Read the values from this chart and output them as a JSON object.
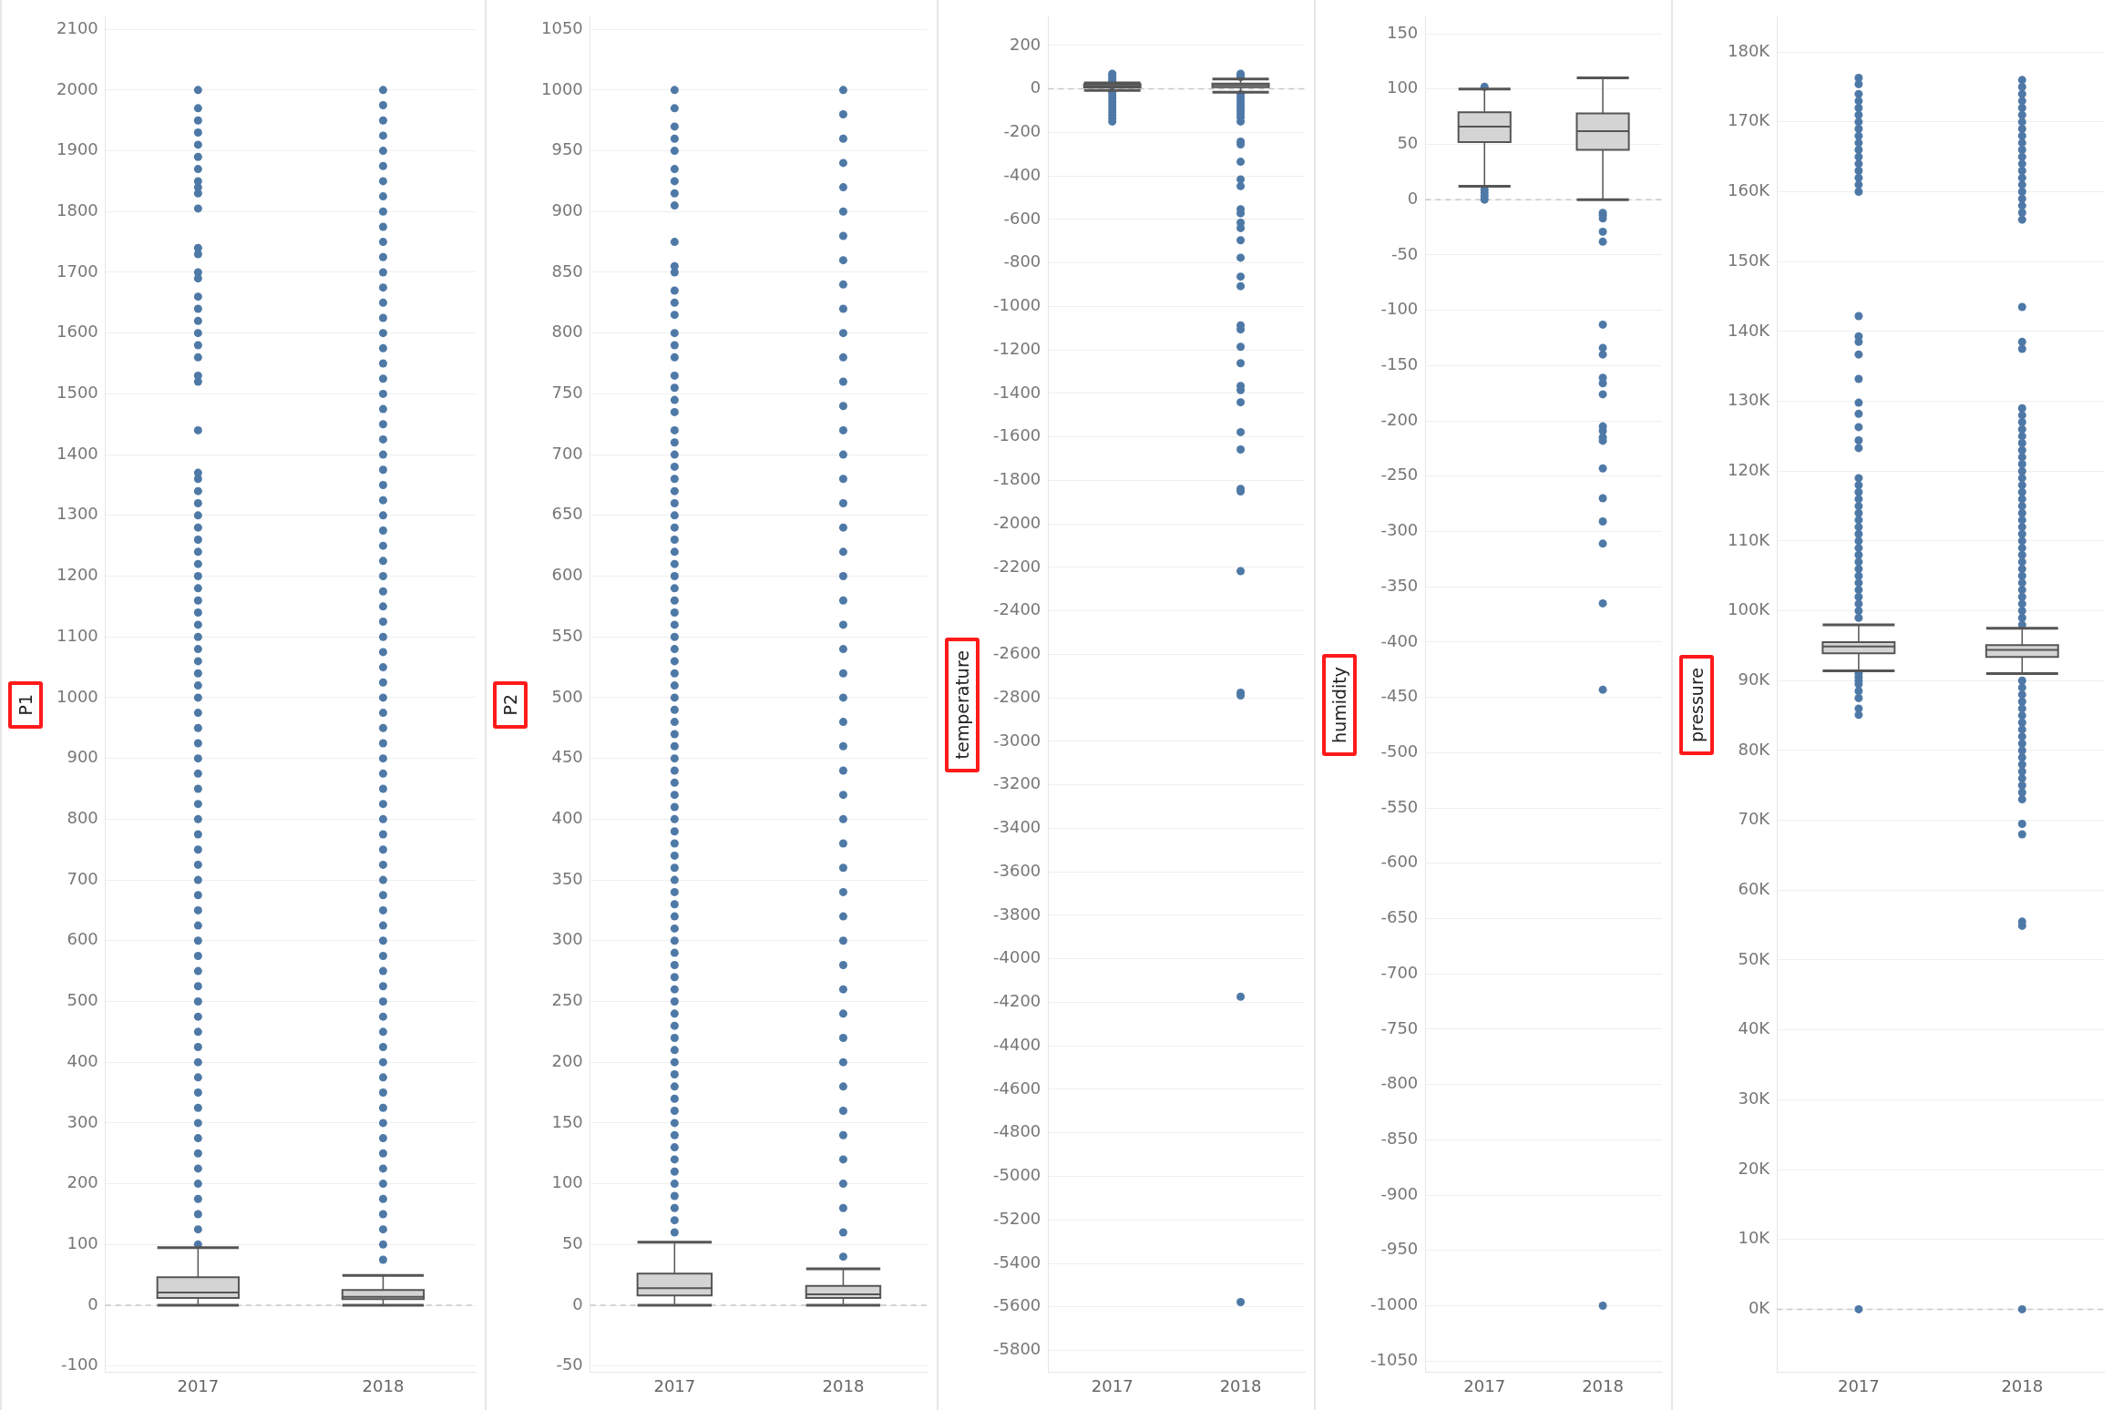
{
  "chart_data": [
    {
      "type": "box",
      "ylabel": "P1",
      "categories": [
        "2017",
        "2018"
      ],
      "grid": "y",
      "color": "#d4d4d4",
      "ylim": [
        -110,
        2120
      ],
      "yticks": [
        -100,
        0,
        100,
        200,
        300,
        400,
        500,
        600,
        700,
        800,
        900,
        1000,
        1100,
        1200,
        1300,
        1400,
        1500,
        1600,
        1700,
        1800,
        1900,
        2000,
        2100
      ],
      "ref_lines": [
        {
          "axis": "y",
          "value": 0,
          "color": "#c8c8c8",
          "line_style": "dashed"
        }
      ],
      "boxes": [
        {
          "low": 0,
          "q1": 12,
          "median": 21,
          "q3": 46,
          "high": 95,
          "outliers": [
            100,
            125,
            150,
            175,
            200,
            225,
            250,
            275,
            300,
            325,
            350,
            375,
            400,
            425,
            450,
            475,
            500,
            525,
            550,
            575,
            600,
            625,
            650,
            675,
            700,
            725,
            750,
            775,
            800,
            825,
            850,
            875,
            900,
            925,
            950,
            975,
            1000,
            1020,
            1040,
            1060,
            1080,
            1100,
            1120,
            1140,
            1160,
            1180,
            1200,
            1220,
            1240,
            1260,
            1280,
            1300,
            1320,
            1340,
            1360,
            1370,
            1440,
            1520,
            1530,
            1560,
            1580,
            1600,
            1620,
            1640,
            1660,
            1690,
            1700,
            1730,
            1740,
            1805,
            1830,
            1840,
            1850,
            1870,
            1890,
            1910,
            1930,
            1950,
            1970,
            2000
          ]
        },
        {
          "low": 0,
          "q1": 10,
          "median": 14,
          "q3": 25,
          "high": 49,
          "outliers": [
            75,
            100,
            125,
            150,
            175,
            200,
            225,
            250,
            275,
            300,
            325,
            350,
            375,
            400,
            425,
            450,
            475,
            500,
            525,
            550,
            575,
            600,
            625,
            650,
            675,
            700,
            725,
            750,
            775,
            800,
            825,
            850,
            875,
            900,
            925,
            950,
            975,
            1000,
            1025,
            1050,
            1075,
            1100,
            1125,
            1150,
            1175,
            1200,
            1225,
            1250,
            1275,
            1300,
            1325,
            1350,
            1375,
            1400,
            1425,
            1450,
            1475,
            1500,
            1525,
            1550,
            1575,
            1600,
            1625,
            1650,
            1675,
            1700,
            1725,
            1750,
            1775,
            1800,
            1825,
            1850,
            1875,
            1900,
            1925,
            1950,
            1975,
            2000
          ]
        }
      ]
    },
    {
      "type": "box",
      "ylabel": "P2",
      "categories": [
        "2017",
        "2018"
      ],
      "grid": "y",
      "color": "#d4d4d4",
      "ylim": [
        -55,
        1060
      ],
      "yticks": [
        -50,
        0,
        50,
        100,
        150,
        200,
        250,
        300,
        350,
        400,
        450,
        500,
        550,
        600,
        650,
        700,
        750,
        800,
        850,
        900,
        950,
        1000,
        1050
      ],
      "ref_lines": [
        {
          "axis": "y",
          "value": 0,
          "color": "#c8c8c8",
          "line_style": "dashed"
        }
      ],
      "boxes": [
        {
          "low": 0,
          "q1": 8,
          "median": 14,
          "q3": 26,
          "high": 52,
          "outliers": [
            60,
            70,
            80,
            90,
            100,
            110,
            120,
            130,
            140,
            150,
            160,
            170,
            180,
            190,
            200,
            210,
            220,
            230,
            240,
            250,
            260,
            270,
            280,
            290,
            300,
            310,
            320,
            330,
            340,
            350,
            360,
            370,
            380,
            390,
            400,
            410,
            420,
            430,
            440,
            450,
            460,
            470,
            480,
            490,
            500,
            510,
            520,
            530,
            540,
            550,
            560,
            570,
            580,
            590,
            600,
            610,
            620,
            630,
            640,
            650,
            660,
            670,
            680,
            690,
            700,
            710,
            720,
            735,
            745,
            755,
            765,
            780,
            790,
            800,
            815,
            825,
            835,
            850,
            855,
            875,
            905,
            915,
            925,
            935,
            950,
            960,
            970,
            985,
            1000
          ]
        },
        {
          "low": 0,
          "q1": 6,
          "median": 9,
          "q3": 16,
          "high": 30,
          "outliers": [
            40,
            60,
            80,
            100,
            120,
            140,
            160,
            180,
            200,
            220,
            240,
            260,
            280,
            300,
            320,
            340,
            360,
            380,
            400,
            420,
            440,
            460,
            480,
            500,
            520,
            540,
            560,
            580,
            600,
            620,
            640,
            660,
            680,
            700,
            720,
            740,
            760,
            780,
            800,
            820,
            840,
            860,
            880,
            900,
            920,
            940,
            960,
            980,
            1000
          ]
        }
      ]
    },
    {
      "type": "box",
      "ylabel": "temperature",
      "categories": [
        "2017",
        "2018"
      ],
      "grid": "y",
      "color": "#d4d4d4",
      "ylim": [
        -5900,
        330
      ],
      "yticks": [
        -5800,
        -5600,
        -5400,
        -5200,
        -5000,
        -4800,
        -4600,
        -4400,
        -4200,
        -4000,
        -3800,
        -3600,
        -3400,
        -3200,
        -3000,
        -2800,
        -2600,
        -2400,
        -2200,
        -2000,
        -1800,
        -1600,
        -1400,
        -1200,
        -1000,
        -800,
        -600,
        -400,
        -200,
        0,
        200
      ],
      "ref_lines": [
        {
          "axis": "y",
          "value": 0,
          "color": "#c8c8c8",
          "line_style": "dashed"
        }
      ],
      "boxes": [
        {
          "low": -7,
          "q1": 7,
          "median": 14,
          "q3": 21,
          "high": 28,
          "outliers": [
            35,
            45,
            55,
            65,
            70,
            -15,
            -30,
            -45,
            -60,
            -75,
            -90,
            -105,
            -120,
            -135,
            -150
          ]
        },
        {
          "low": -15,
          "q1": 8,
          "median": 17,
          "q3": 25,
          "high": 45,
          "outliers": [
            55,
            65,
            70,
            -25,
            -40,
            -55,
            -70,
            -85,
            -100,
            -115,
            -130,
            -150,
            -242,
            -255,
            -335,
            -416,
            -447,
            -553,
            -572,
            -615,
            -640,
            -696,
            -776,
            -863,
            -907,
            -1087,
            -1106,
            -1186,
            -1261,
            -1366,
            -1385,
            -1441,
            -1578,
            -1658,
            -1839,
            -1851,
            -2217,
            -2776,
            -2789,
            -4174,
            -5578
          ]
        }
      ]
    },
    {
      "type": "box",
      "ylabel": "humidity",
      "categories": [
        "2017",
        "2018"
      ],
      "grid": "y",
      "color": "#d4d4d4",
      "ylim": [
        -1060,
        165
      ],
      "yticks": [
        -1050,
        -1000,
        -950,
        -900,
        -850,
        -800,
        -750,
        -700,
        -650,
        -600,
        -550,
        -500,
        -450,
        -400,
        -350,
        -300,
        -250,
        -200,
        -150,
        -100,
        -50,
        0,
        50,
        100,
        150
      ],
      "ref_lines": [
        {
          "axis": "y",
          "value": 0,
          "color": "#c8c8c8",
          "line_style": "dashed"
        }
      ],
      "boxes": [
        {
          "low": 12,
          "q1": 52,
          "median": 66,
          "q3": 79,
          "high": 100,
          "outliers": [
            0,
            3,
            6,
            9,
            102
          ]
        },
        {
          "low": 0,
          "q1": 45,
          "median": 62,
          "q3": 78,
          "high": 110,
          "outliers": [
            -12,
            -14,
            -17,
            -29,
            -38,
            -113,
            -134,
            -140,
            -161,
            -166,
            -176,
            -205,
            -209,
            -215,
            -218,
            -243,
            -270,
            -291,
            -311,
            -365,
            -443,
            -1000
          ]
        }
      ]
    },
    {
      "type": "box",
      "ylabel": "pressure",
      "categories": [
        "2017",
        "2018"
      ],
      "grid": "y",
      "color": "#d4d4d4",
      "ylim": [
        -9000,
        185000
      ],
      "yticks": [
        {
          "value": 0,
          "label": "0K"
        },
        {
          "value": 10000,
          "label": "10K"
        },
        {
          "value": 20000,
          "label": "20K"
        },
        {
          "value": 30000,
          "label": "30K"
        },
        {
          "value": 40000,
          "label": "40K"
        },
        {
          "value": 50000,
          "label": "50K"
        },
        {
          "value": 60000,
          "label": "60K"
        },
        {
          "value": 70000,
          "label": "70K"
        },
        {
          "value": 80000,
          "label": "80K"
        },
        {
          "value": 90000,
          "label": "90K"
        },
        {
          "value": 100000,
          "label": "100K"
        },
        {
          "value": 110000,
          "label": "110K"
        },
        {
          "value": 120000,
          "label": "120K"
        },
        {
          "value": 130000,
          "label": "130K"
        },
        {
          "value": 140000,
          "label": "140K"
        },
        {
          "value": 150000,
          "label": "150K"
        },
        {
          "value": 160000,
          "label": "160K"
        },
        {
          "value": 170000,
          "label": "170K"
        },
        {
          "value": 180000,
          "label": "180K"
        }
      ],
      "ref_lines": [
        {
          "axis": "y",
          "value": 0,
          "color": "#c8c8c8",
          "line_style": "dashed"
        }
      ],
      "boxes": [
        {
          "low": 91400,
          "q1": 93900,
          "median": 94900,
          "q3": 95500,
          "high": 98000,
          "outliers": [
            0,
            85100,
            86000,
            87500,
            88500,
            89500,
            90000,
            90500,
            91000,
            99000,
            100000,
            101000,
            102000,
            103000,
            104000,
            105000,
            106000,
            107000,
            108000,
            109000,
            110000,
            111000,
            112000,
            113000,
            114000,
            115000,
            116000,
            117000,
            118000,
            119000,
            123300,
            124400,
            126300,
            128200,
            129800,
            133200,
            136700,
            138500,
            139300,
            142200,
            160000,
            161000,
            162000,
            163000,
            164000,
            165000,
            166000,
            167000,
            168000,
            169000,
            170000,
            171000,
            172000,
            173000,
            174000,
            175400,
            176300
          ]
        },
        {
          "low": 91000,
          "q1": 93400,
          "median": 94400,
          "q3": 95100,
          "high": 97500,
          "outliers": [
            0,
            54900,
            55500,
            68000,
            69500,
            73000,
            74000,
            75000,
            76000,
            77000,
            78000,
            79000,
            80000,
            81000,
            82000,
            83000,
            84000,
            85000,
            86000,
            87000,
            88000,
            89000,
            90000,
            98000,
            99000,
            100000,
            101000,
            102000,
            103000,
            104000,
            105000,
            106000,
            107000,
            108000,
            109000,
            110000,
            111000,
            112000,
            113000,
            114000,
            115000,
            116000,
            117000,
            118000,
            119000,
            120000,
            121000,
            122000,
            123000,
            124000,
            125000,
            126000,
            127000,
            128000,
            129000,
            137500,
            138500,
            143500,
            156000,
            157000,
            158000,
            159000,
            160000,
            161000,
            162000,
            163000,
            164000,
            165000,
            166000,
            167000,
            168000,
            169000,
            170000,
            171000,
            172000,
            173000,
            174000,
            175000,
            176000
          ]
        }
      ]
    }
  ]
}
